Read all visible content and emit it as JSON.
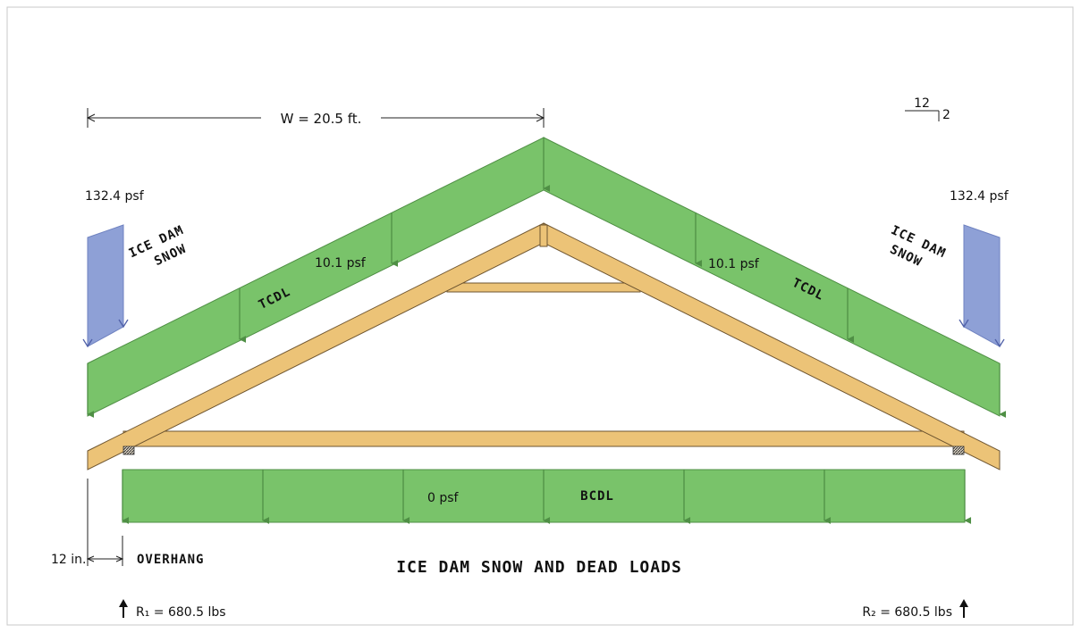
{
  "title": "ICE DAM SNOW AND DEAD LOADS",
  "span_dimension": "W = 20.5 ft.",
  "pitch": {
    "run": "12",
    "rise": "2"
  },
  "snow_loads": {
    "left": {
      "value": "132.4 psf",
      "label_line1": "ICE DAM",
      "label_line2": "SNOW"
    },
    "right": {
      "value": "132.4 psf",
      "label_line1": "ICE DAM",
      "label_line2": "SNOW"
    }
  },
  "top_chord_dead_load": {
    "left_value": "10.1 psf",
    "right_value": "10.1 psf",
    "label": "TCDL"
  },
  "bottom_chord_dead_load": {
    "value": "0 psf",
    "label": "BCDL"
  },
  "overhang": {
    "dimension": "12 in.",
    "label": "OVERHANG"
  },
  "reactions": {
    "r1": "R₁ = 680.5 lbs",
    "r2": "R₂ = 680.5 lbs"
  },
  "colors": {
    "dead_load": "#79c36a",
    "dead_load_stroke": "#4f8f45",
    "snow_load": "#8ea0d6",
    "timber": "#ecc377",
    "timber_stroke": "#6e5530",
    "frame_border": "#c8c8c8"
  }
}
